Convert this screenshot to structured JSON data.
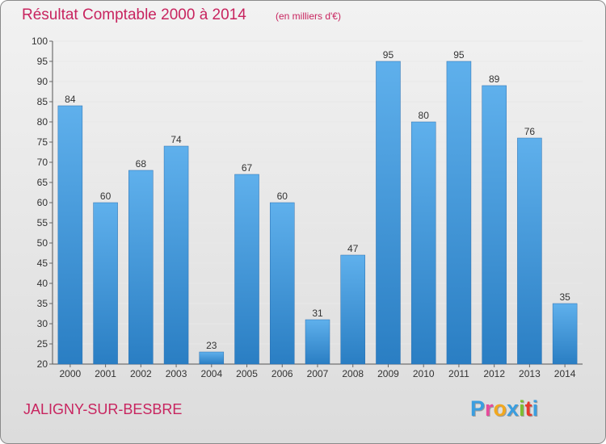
{
  "title": "Résultat Comptable 2000 à 2014",
  "subtitle": "(en milliers d'€)",
  "commune": "JALIGNY-SUR-BESBRE",
  "logo": {
    "text": "Proxiti",
    "colors": [
      "#3a9ee0",
      "#e84a9c",
      "#f2a81f",
      "#3a9ee0",
      "#7dbd2f",
      "#e8392c",
      "#3a9ee0"
    ]
  },
  "colors": {
    "accent": "#c8245f",
    "bar_top": "#5fb0ec",
    "bar_bottom": "#2a7ec3"
  },
  "chart_data": {
    "type": "bar",
    "title": "Résultat Comptable 2000 à 2014",
    "subtitle": "(en milliers d'€)",
    "categories": [
      "2000",
      "2001",
      "2002",
      "2003",
      "2004",
      "2005",
      "2006",
      "2007",
      "2008",
      "2009",
      "2010",
      "2011",
      "2012",
      "2013",
      "2014"
    ],
    "values": [
      84,
      60,
      68,
      74,
      23,
      67,
      60,
      31,
      47,
      95,
      80,
      95,
      89,
      76,
      35
    ],
    "ylim": [
      20,
      100
    ],
    "yticks": [
      20,
      25,
      30,
      35,
      40,
      45,
      50,
      55,
      60,
      65,
      70,
      75,
      80,
      85,
      90,
      95,
      100
    ],
    "grid": true,
    "data_labels": true
  }
}
